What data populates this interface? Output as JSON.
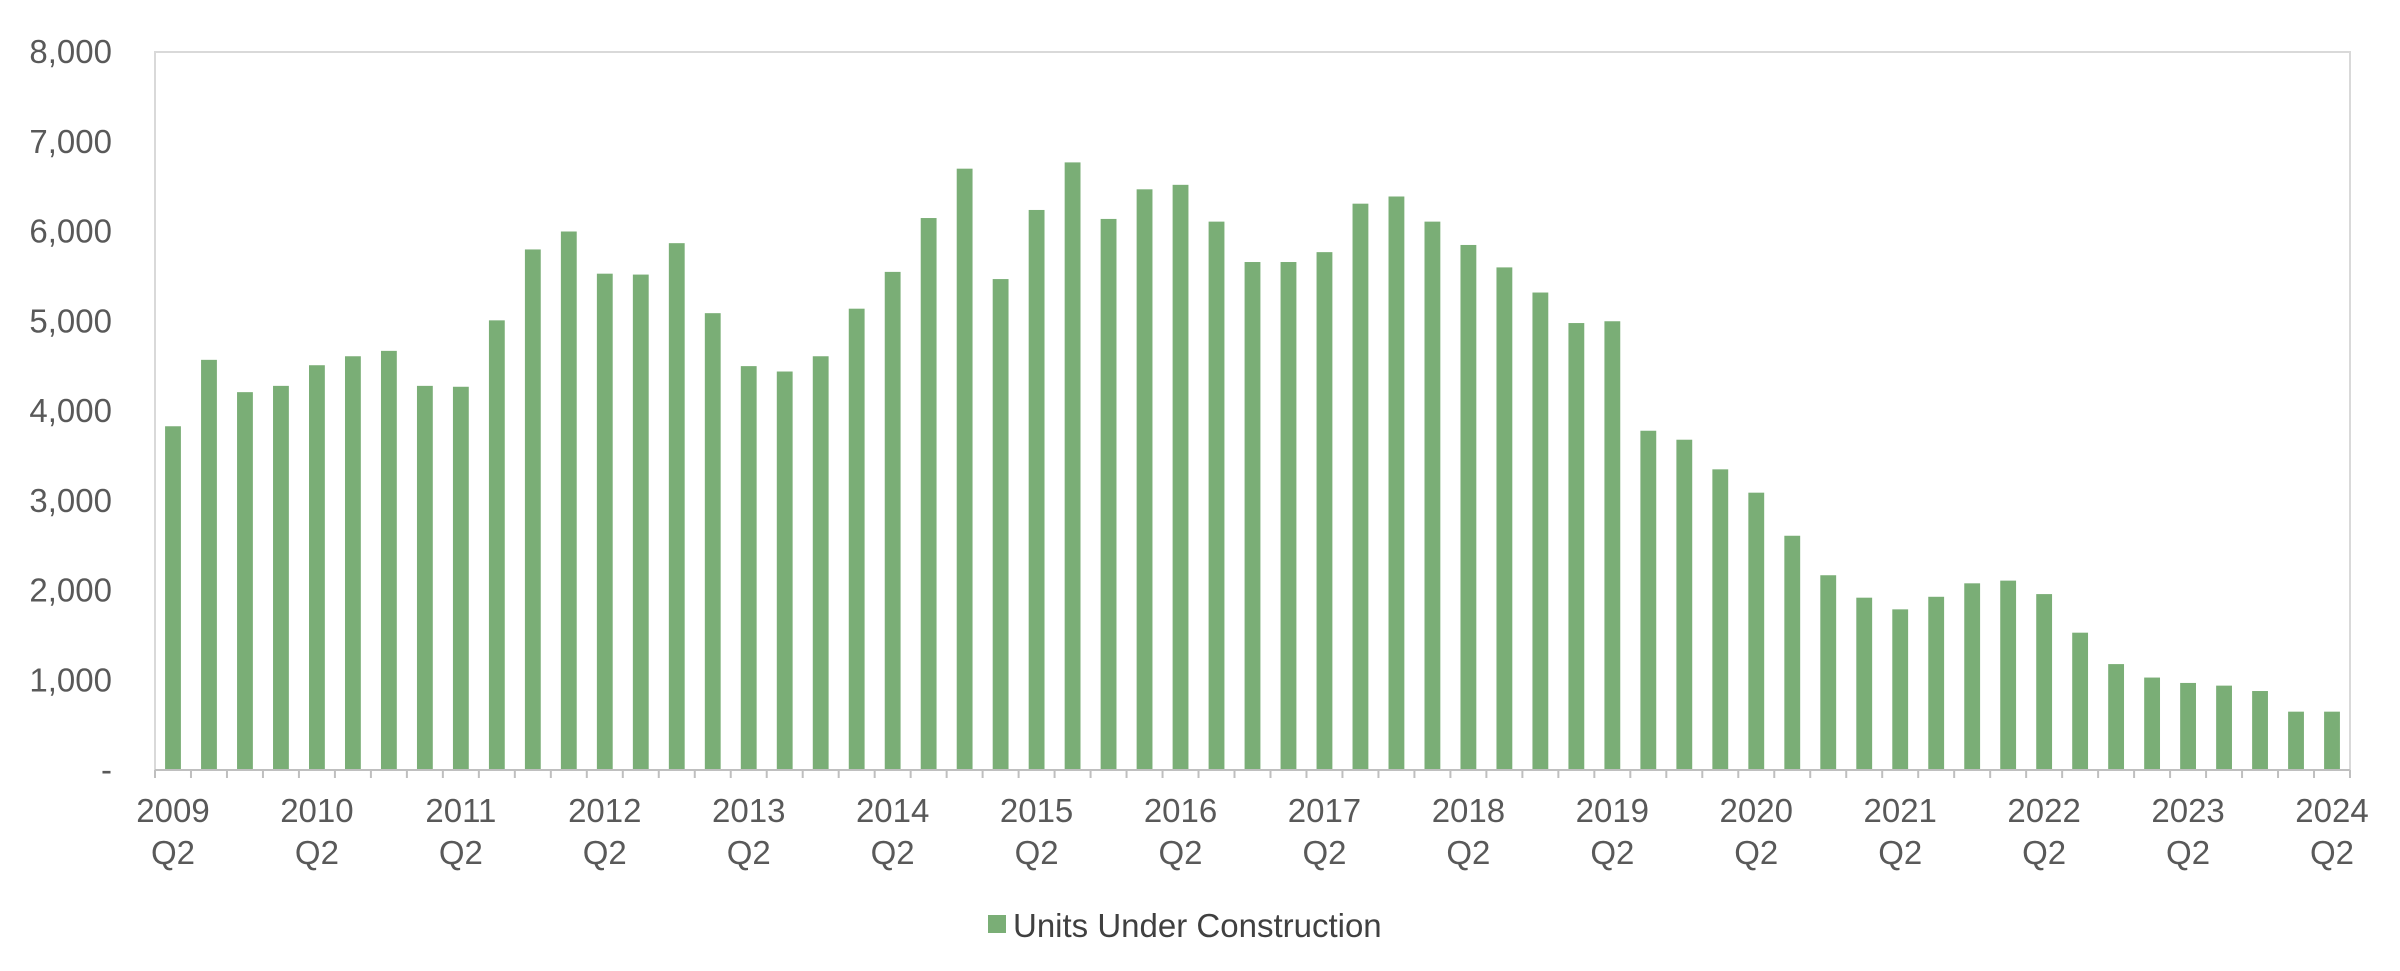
{
  "chart_data": {
    "type": "bar",
    "title": "",
    "xlabel": "",
    "ylabel": "",
    "ylim": [
      0,
      8000
    ],
    "yticks": [
      {
        "value": 0,
        "label": "-"
      },
      {
        "value": 1000,
        "label": "1,000"
      },
      {
        "value": 2000,
        "label": "2,000"
      },
      {
        "value": 3000,
        "label": "3,000"
      },
      {
        "value": 4000,
        "label": "4,000"
      },
      {
        "value": 5000,
        "label": "5,000"
      },
      {
        "value": 6000,
        "label": "6,000"
      },
      {
        "value": 7000,
        "label": "7,000"
      },
      {
        "value": 8000,
        "label": "8,000"
      }
    ],
    "categories": [
      "2009 Q2",
      "2009 Q3",
      "2009 Q4",
      "2010 Q1",
      "2010 Q2",
      "2010 Q3",
      "2010 Q4",
      "2011 Q1",
      "2011 Q2",
      "2011 Q3",
      "2011 Q4",
      "2012 Q1",
      "2012 Q2",
      "2012 Q3",
      "2012 Q4",
      "2013 Q1",
      "2013 Q2",
      "2013 Q3",
      "2013 Q4",
      "2014 Q1",
      "2014 Q2",
      "2014 Q3",
      "2014 Q4",
      "2015 Q1",
      "2015 Q2",
      "2015 Q3",
      "2015 Q4",
      "2016 Q1",
      "2016 Q2",
      "2016 Q3",
      "2016 Q4",
      "2017 Q1",
      "2017 Q2",
      "2017 Q3",
      "2017 Q4",
      "2018 Q1",
      "2018 Q2",
      "2018 Q3",
      "2018 Q4",
      "2019 Q1",
      "2019 Q2",
      "2019 Q3",
      "2019 Q4",
      "2020 Q1",
      "2020 Q2",
      "2020 Q3",
      "2020 Q4",
      "2021 Q1",
      "2021 Q2",
      "2021 Q3",
      "2021 Q4",
      "2022 Q1",
      "2022 Q2",
      "2022 Q3",
      "2022 Q4",
      "2023 Q1",
      "2023 Q2",
      "2023 Q3",
      "2023 Q4",
      "2024 Q1",
      "2024 Q2"
    ],
    "x_tick_labels": [
      {
        "index": 0,
        "year": "2009",
        "quarter": "Q2"
      },
      {
        "index": 4,
        "year": "2010",
        "quarter": "Q2"
      },
      {
        "index": 8,
        "year": "2011",
        "quarter": "Q2"
      },
      {
        "index": 12,
        "year": "2012",
        "quarter": "Q2"
      },
      {
        "index": 16,
        "year": "2013",
        "quarter": "Q2"
      },
      {
        "index": 20,
        "year": "2014",
        "quarter": "Q2"
      },
      {
        "index": 24,
        "year": "2015",
        "quarter": "Q2"
      },
      {
        "index": 28,
        "year": "2016",
        "quarter": "Q2"
      },
      {
        "index": 32,
        "year": "2017",
        "quarter": "Q2"
      },
      {
        "index": 36,
        "year": "2018",
        "quarter": "Q2"
      },
      {
        "index": 40,
        "year": "2019",
        "quarter": "Q2"
      },
      {
        "index": 44,
        "year": "2020",
        "quarter": "Q2"
      },
      {
        "index": 48,
        "year": "2021",
        "quarter": "Q2"
      },
      {
        "index": 52,
        "year": "2022",
        "quarter": "Q2"
      },
      {
        "index": 56,
        "year": "2023",
        "quarter": "Q2"
      },
      {
        "index": 60,
        "year": "2024",
        "quarter": "Q2"
      }
    ],
    "series": [
      {
        "name": "Units Under Construction",
        "color": "#7aae76",
        "values": [
          3830,
          4570,
          4210,
          4280,
          4510,
          4610,
          4670,
          4280,
          4270,
          5010,
          5800,
          6000,
          5530,
          5520,
          5870,
          5090,
          4500,
          4440,
          4610,
          5140,
          5550,
          6150,
          6700,
          5470,
          6240,
          6770,
          6140,
          6470,
          6520,
          6110,
          5660,
          5660,
          5770,
          6310,
          6390,
          6110,
          5850,
          5600,
          5320,
          4980,
          5000,
          3780,
          3680,
          3350,
          3090,
          2610,
          2170,
          1920,
          1790,
          1930,
          2080,
          2110,
          1960,
          1530,
          1180,
          1030,
          970,
          940,
          880,
          650,
          650
        ]
      }
    ],
    "grid": false,
    "legend": "bottom-center"
  }
}
